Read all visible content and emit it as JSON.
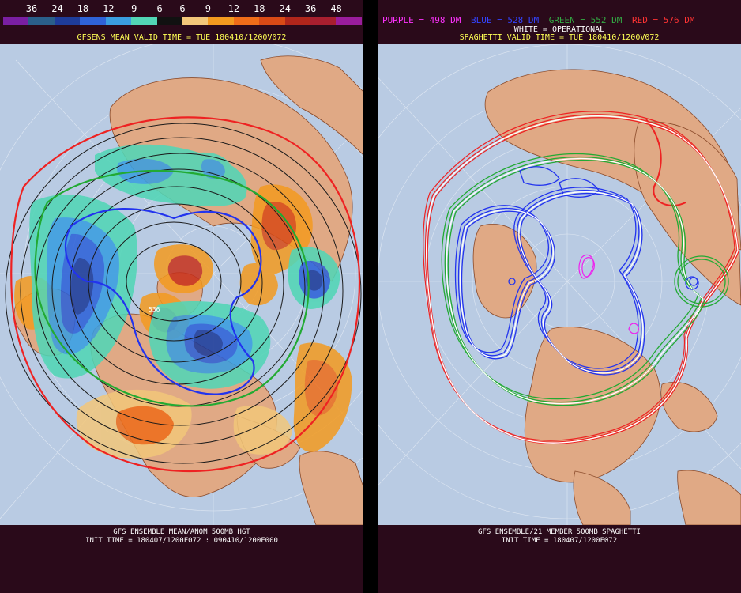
{
  "left_panel": {
    "colorbar": {
      "ticks": [
        "-36",
        "-24",
        "-18",
        "-12",
        "-9",
        "-6",
        "6",
        "9",
        "12",
        "18",
        "24",
        "36",
        "48"
      ],
      "colors": [
        "#7a1fa2",
        "#2a5f8a",
        "#1e3c9a",
        "#2f63d8",
        "#3a9ee0",
        "#52d6b6",
        "#111111",
        "#f2c77a",
        "#f39a1f",
        "#ef6d19",
        "#d84a16",
        "#b0261b",
        "#a81f2f",
        "#9a1d9c"
      ]
    },
    "title": "GFSENS MEAN VALID TIME = TUE 180410/1200V072",
    "map_label": "536",
    "footer_line1": "GFS ENSEMBLE MEAN/ANOM 500MB HGT",
    "footer_line2": "INIT TIME = 180407/1200F072 : 090410/1200F000"
  },
  "right_panel": {
    "legend": [
      {
        "text": "PURPLE = 498 DM",
        "color": "#ff33ff"
      },
      {
        "text": "BLUE = 528 DM",
        "color": "#3344ff"
      },
      {
        "text": "GREEN = 552 DM",
        "color": "#33aa44"
      },
      {
        "text": "RED = 576 DM",
        "color": "#ff3333"
      }
    ],
    "operational_label": "WHITE = OPERATIONAL",
    "title": "SPAGHETTI VALID TIME = TUE 180410/1200V072",
    "footer_line1": "GFS ENSEMBLE/21 MEMBER 500MB SPAGHETTI",
    "footer_line2": "INIT TIME = 180407/1200F072"
  },
  "colors": {
    "ocean": "#b9cbe3",
    "land": "#e0a985",
    "background": "#2a0a1a"
  }
}
